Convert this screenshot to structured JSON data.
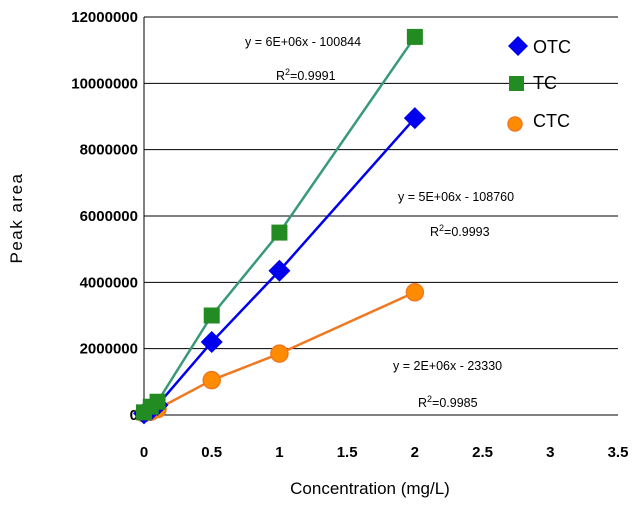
{
  "chart_data": {
    "type": "scatter",
    "xlabel": "Concentration (mg/L)",
    "ylabel": "Peak area",
    "xlim": [
      0,
      3.5
    ],
    "ylim": [
      0,
      12000000
    ],
    "x_ticks": [
      0,
      0.5,
      1,
      1.5,
      2,
      2.5,
      3,
      3.5
    ],
    "x_tick_labels": [
      "0",
      "0.5",
      "1",
      "1.5",
      "2",
      "2.5",
      "3",
      "3.5"
    ],
    "y_ticks": [
      0,
      2000000,
      4000000,
      6000000,
      8000000,
      10000000,
      12000000
    ],
    "y_tick_labels": [
      "0",
      "2000000",
      "4000000",
      "6000000",
      "8000000",
      "10000000",
      "12000000"
    ],
    "grid": "horizontal",
    "legend_position": "top-right",
    "series": [
      {
        "name": "OTC",
        "marker": "diamond",
        "color": "#0000ee",
        "x": [
          0,
          0.05,
          0.1,
          0.5,
          1,
          2
        ],
        "y": [
          50000,
          150000,
          300000,
          2200000,
          4350000,
          8950000
        ]
      },
      {
        "name": "TC",
        "marker": "square",
        "color": "#228b22",
        "line_color": "#3a9a78",
        "x": [
          0,
          0.05,
          0.1,
          0.5,
          1,
          2
        ],
        "y": [
          80000,
          250000,
          400000,
          3000000,
          5500000,
          11400000
        ]
      },
      {
        "name": "CTC",
        "marker": "circle",
        "color": "#ff8c00",
        "line_color": "#f07820",
        "x": [
          0,
          0.05,
          0.1,
          0.5,
          1,
          2
        ],
        "y": [
          50000,
          100000,
          180000,
          1050000,
          1850000,
          3700000
        ]
      }
    ],
    "annotations": [
      {
        "equation": "y = 6E+06x - 100844",
        "r2_prefix": "R",
        "r2_sup": "2",
        "r2_value": "=0.9991"
      },
      {
        "equation": "y = 5E+06x - 108760",
        "r2_prefix": "R",
        "r2_sup": "2",
        "r2_value": "=0.9993"
      },
      {
        "equation": "y = 2E+06x - 23330",
        "r2_prefix": "R",
        "r2_sup": "2",
        "r2_value": "=0.9985"
      }
    ]
  }
}
